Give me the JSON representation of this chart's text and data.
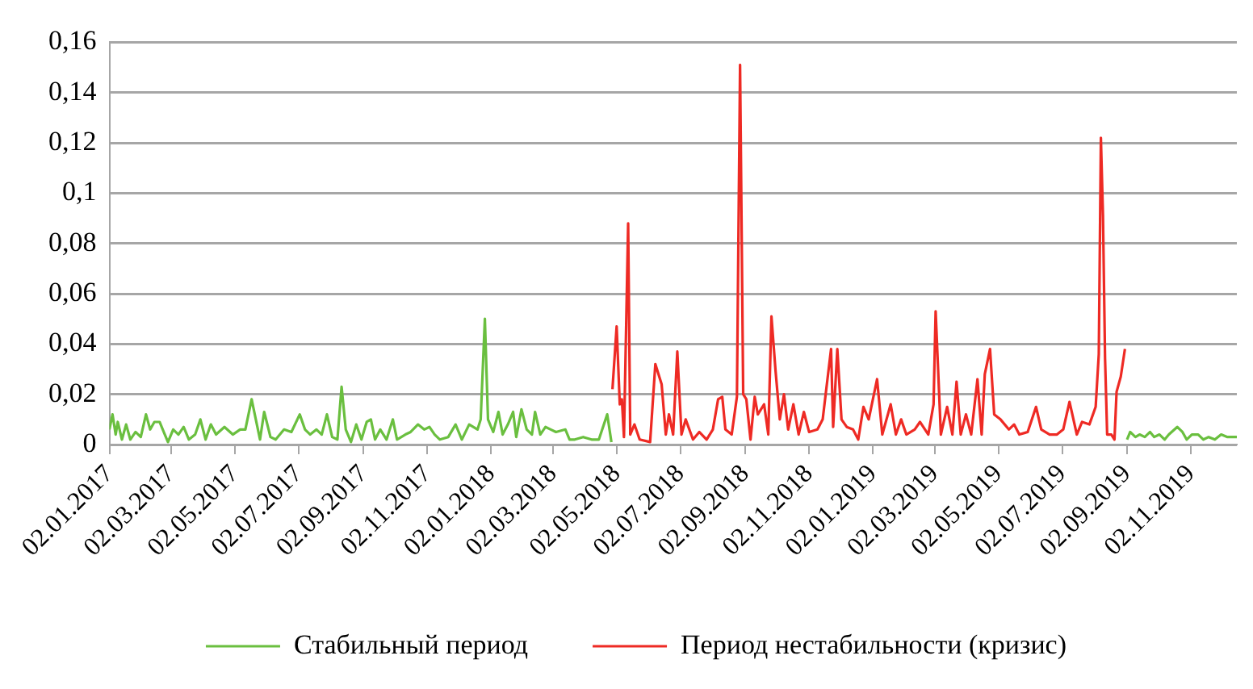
{
  "chart_data": {
    "type": "line",
    "xlim": [
      "2017-01-02",
      "2019-12-16"
    ],
    "ylim": [
      0,
      0.16
    ],
    "xticks": [
      {
        "value": "2017-01-02",
        "label": "02.01.2017"
      },
      {
        "value": "2017-03-02",
        "label": "02.03.2017"
      },
      {
        "value": "2017-05-02",
        "label": "02.05.2017"
      },
      {
        "value": "2017-07-02",
        "label": "02.07.2017"
      },
      {
        "value": "2017-09-02",
        "label": "02.09.2017"
      },
      {
        "value": "2017-11-02",
        "label": "02.11.2017"
      },
      {
        "value": "2018-01-02",
        "label": "02.01.2018"
      },
      {
        "value": "2018-03-02",
        "label": "02.03.2018"
      },
      {
        "value": "2018-05-02",
        "label": "02.05.2018"
      },
      {
        "value": "2018-07-02",
        "label": "02.07.2018"
      },
      {
        "value": "2018-09-02",
        "label": "02.09.2018"
      },
      {
        "value": "2018-11-02",
        "label": "02.11.2018"
      },
      {
        "value": "2019-01-02",
        "label": "02.01.2019"
      },
      {
        "value": "2019-03-02",
        "label": "02.03.2019"
      },
      {
        "value": "2019-05-02",
        "label": "02.05.2019"
      },
      {
        "value": "2019-07-02",
        "label": "02.07.2019"
      },
      {
        "value": "2019-09-02",
        "label": "02.09.2019"
      },
      {
        "value": "2019-11-02",
        "label": "02.11.2019"
      }
    ],
    "yticks": [
      0,
      {
        "value": 0.02,
        "label": "0,02"
      },
      {
        "value": 0.04,
        "label": "0,04"
      },
      {
        "value": 0.06,
        "label": "0,06"
      },
      {
        "value": 0.08,
        "label": "0,08"
      },
      {
        "value": 0.1,
        "label": "0,1"
      },
      {
        "value": 0.12,
        "label": "0,12"
      },
      {
        "value": 0.14,
        "label": "0,14"
      },
      {
        "value": 0.16,
        "label": "0,16"
      }
    ],
    "grid": "y",
    "legend": "bottom",
    "marker": "none",
    "line_style": "solid",
    "series": [
      {
        "name": "Стабильный период",
        "color": "#6abf3f",
        "x": [
          "2017-01-02",
          "2017-01-05",
          "2017-01-08",
          "2017-01-10",
          "2017-01-14",
          "2017-01-18",
          "2017-01-22",
          "2017-01-27",
          "2017-02-01",
          "2017-02-06",
          "2017-02-10",
          "2017-02-14",
          "2017-02-19",
          "2017-02-24",
          "2017-02-27",
          "2017-03-04",
          "2017-03-09",
          "2017-03-14",
          "2017-03-19",
          "2017-03-25",
          "2017-03-30",
          "2017-04-04",
          "2017-04-09",
          "2017-04-14",
          "2017-04-22",
          "2017-04-30",
          "2017-05-07",
          "2017-05-12",
          "2017-05-18",
          "2017-05-22",
          "2017-05-26",
          "2017-05-30",
          "2017-06-05",
          "2017-06-10",
          "2017-06-18",
          "2017-06-25",
          "2017-07-03",
          "2017-07-08",
          "2017-07-13",
          "2017-07-19",
          "2017-07-24",
          "2017-07-29",
          "2017-08-03",
          "2017-08-08",
          "2017-08-12",
          "2017-08-16",
          "2017-08-21",
          "2017-08-26",
          "2017-08-31",
          "2017-09-05",
          "2017-09-09",
          "2017-09-13",
          "2017-09-18",
          "2017-09-24",
          "2017-09-30",
          "2017-10-04",
          "2017-10-12",
          "2017-10-17",
          "2017-10-24",
          "2017-10-30",
          "2017-11-04",
          "2017-11-09",
          "2017-11-14",
          "2017-11-22",
          "2017-11-29",
          "2017-12-05",
          "2017-12-12",
          "2017-12-20",
          "2017-12-23",
          "2017-12-27",
          "2017-12-30",
          "2018-01-04",
          "2018-01-09",
          "2018-01-13",
          "2018-01-18",
          "2018-01-23",
          "2018-01-26",
          "2018-01-31",
          "2018-02-05",
          "2018-02-10",
          "2018-02-13",
          "2018-02-18",
          "2018-02-23",
          "2018-02-28",
          "2018-03-05",
          "2018-03-14",
          "2018-03-18",
          "2018-03-23",
          "2018-03-31",
          "2018-04-08",
          "2018-04-15",
          "2018-04-23",
          "2018-04-27",
          "2018-04-28",
          "2019-08-31",
          "2019-09-02",
          "2019-09-05",
          "2019-09-10",
          "2019-09-14",
          "2019-09-19",
          "2019-09-24",
          "2019-09-28",
          "2019-10-03",
          "2019-10-08",
          "2019-10-12",
          "2019-10-20",
          "2019-10-25",
          "2019-10-29",
          "2019-11-03",
          "2019-11-09",
          "2019-11-14",
          "2019-11-19",
          "2019-11-25",
          "2019-12-01",
          "2019-12-07",
          "2019-12-16"
        ],
        "values": [
          0.006,
          0.012,
          0.004,
          0.009,
          0.002,
          0.008,
          0.002,
          0.005,
          0.003,
          0.012,
          0.006,
          0.009,
          0.009,
          0.004,
          0.001,
          0.006,
          0.004,
          0.007,
          0.002,
          0.004,
          0.01,
          0.002,
          0.008,
          0.004,
          0.007,
          0.004,
          0.006,
          0.006,
          0.018,
          0.01,
          0.002,
          0.013,
          0.003,
          0.002,
          0.006,
          0.005,
          0.012,
          0.006,
          0.004,
          0.006,
          0.004,
          0.012,
          0.003,
          0.002,
          0.023,
          0.006,
          0.001,
          0.008,
          0.002,
          0.009,
          0.01,
          0.002,
          0.006,
          0.002,
          0.01,
          0.002,
          0.004,
          0.005,
          0.008,
          0.006,
          0.007,
          0.004,
          0.002,
          0.003,
          0.008,
          0.002,
          0.008,
          0.006,
          0.01,
          0.05,
          0.01,
          0.005,
          0.013,
          0.004,
          0.008,
          0.013,
          0.003,
          0.014,
          0.006,
          0.004,
          0.013,
          0.004,
          0.007,
          0.006,
          0.005,
          0.006,
          0.002,
          0.002,
          0.003,
          0.002,
          0.002,
          0.012,
          0.001,
          null,
          null,
          0.002,
          0.005,
          0.003,
          0.004,
          0.003,
          0.005,
          0.003,
          0.004,
          0.002,
          0.004,
          0.007,
          0.005,
          0.002,
          0.004,
          0.004,
          0.002,
          0.003,
          0.002,
          0.004,
          0.003,
          0.003
        ]
      },
      {
        "name": "Период нестабильности (кризис)",
        "color": "#ee2a24",
        "x": [
          "2018-04-28",
          "2018-05-02",
          "2018-05-05",
          "2018-05-07",
          "2018-05-09",
          "2018-05-13",
          "2018-05-15",
          "2018-05-19",
          "2018-05-24",
          "2018-06-03",
          "2018-06-08",
          "2018-06-14",
          "2018-06-18",
          "2018-06-21",
          "2018-06-25",
          "2018-06-29",
          "2018-07-03",
          "2018-07-07",
          "2018-07-14",
          "2018-07-20",
          "2018-07-27",
          "2018-08-02",
          "2018-08-07",
          "2018-08-11",
          "2018-08-14",
          "2018-08-20",
          "2018-08-25",
          "2018-08-28",
          "2018-08-31",
          "2018-09-03",
          "2018-09-07",
          "2018-09-11",
          "2018-09-14",
          "2018-09-20",
          "2018-09-24",
          "2018-09-27",
          "2018-10-01",
          "2018-10-05",
          "2018-10-09",
          "2018-10-13",
          "2018-10-18",
          "2018-10-23",
          "2018-10-28",
          "2018-11-02",
          "2018-11-10",
          "2018-11-15",
          "2018-11-23",
          "2018-11-25",
          "2018-11-29",
          "2018-12-03",
          "2018-12-08",
          "2018-12-14",
          "2018-12-19",
          "2018-12-24",
          "2018-12-29",
          "2019-01-06",
          "2019-01-11",
          "2019-01-19",
          "2019-01-24",
          "2019-01-29",
          "2019-02-03",
          "2019-02-11",
          "2019-02-16",
          "2019-02-24",
          "2019-03-01",
          "2019-03-03",
          "2019-03-08",
          "2019-03-14",
          "2019-03-19",
          "2019-03-23",
          "2019-03-27",
          "2019-04-01",
          "2019-04-06",
          "2019-04-12",
          "2019-04-16",
          "2019-04-19",
          "2019-04-24",
          "2019-04-28",
          "2019-05-04",
          "2019-05-12",
          "2019-05-17",
          "2019-05-22",
          "2019-05-30",
          "2019-06-07",
          "2019-06-12",
          "2019-06-20",
          "2019-06-27",
          "2019-07-03",
          "2019-07-09",
          "2019-07-16",
          "2019-07-21",
          "2019-07-28",
          "2019-08-03",
          "2019-08-06",
          "2019-08-08",
          "2019-08-10",
          "2019-08-12",
          "2019-08-14",
          "2019-08-18",
          "2019-08-21",
          "2019-08-23",
          "2019-08-27",
          "2019-08-31"
        ],
        "values": [
          0.022,
          0.047,
          0.016,
          0.018,
          0.003,
          0.088,
          0.004,
          0.008,
          0.002,
          0.001,
          0.032,
          0.024,
          0.004,
          0.012,
          0.004,
          0.037,
          0.004,
          0.01,
          0.002,
          0.005,
          0.002,
          0.006,
          0.018,
          0.019,
          0.006,
          0.004,
          0.019,
          0.151,
          0.02,
          0.018,
          0.002,
          0.019,
          0.012,
          0.016,
          0.004,
          0.051,
          0.029,
          0.01,
          0.02,
          0.006,
          0.016,
          0.004,
          0.013,
          0.005,
          0.006,
          0.01,
          0.038,
          0.007,
          0.038,
          0.01,
          0.007,
          0.006,
          0.002,
          0.015,
          0.01,
          0.026,
          0.004,
          0.016,
          0.004,
          0.01,
          0.004,
          0.006,
          0.009,
          0.004,
          0.016,
          0.053,
          0.004,
          0.015,
          0.004,
          0.025,
          0.004,
          0.012,
          0.004,
          0.026,
          0.004,
          0.028,
          0.038,
          0.012,
          0.01,
          0.006,
          0.008,
          0.004,
          0.005,
          0.015,
          0.006,
          0.004,
          0.004,
          0.006,
          0.017,
          0.004,
          0.009,
          0.008,
          0.015,
          0.036,
          0.122,
          0.091,
          0.034,
          0.004,
          0.004,
          0.002,
          0.021,
          0.027,
          0.038
        ]
      }
    ]
  }
}
